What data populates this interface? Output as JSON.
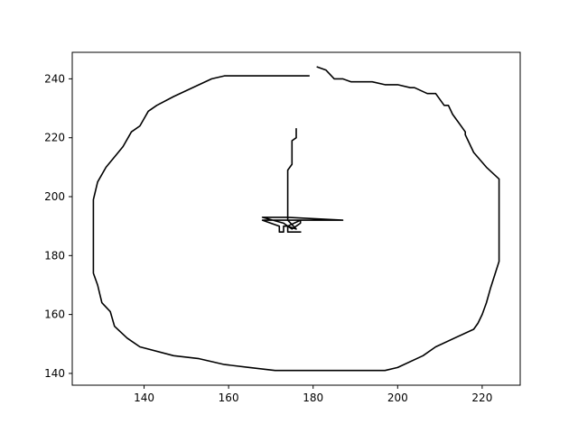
{
  "chart_data": {
    "type": "line",
    "title": "",
    "xlabel": "",
    "ylabel": "",
    "xlim": [
      123,
      229
    ],
    "ylim": [
      136,
      249
    ],
    "grid": false,
    "legend": null,
    "x_ticks": [
      140,
      160,
      180,
      200,
      220
    ],
    "y_ticks": [
      140,
      160,
      180,
      200,
      220,
      240
    ],
    "series": [
      {
        "color": "#000000",
        "x": [
          179,
          159,
          156,
          153,
          147,
          143,
          141,
          139,
          137,
          135,
          131,
          129,
          128,
          128,
          129,
          130,
          132,
          133,
          136,
          139,
          147,
          153,
          159,
          165,
          171,
          197,
          200,
          206,
          209,
          218,
          219,
          220,
          221,
          222,
          224,
          224,
          221,
          218,
          216,
          216,
          214,
          213,
          212,
          211,
          209,
          207,
          204,
          203,
          200,
          197,
          194,
          193,
          189,
          187,
          185,
          183,
          181
        ],
        "y": [
          241,
          241,
          240,
          238,
          234,
          231,
          229,
          224,
          222,
          217,
          210,
          205,
          199,
          174,
          170,
          164,
          161,
          156,
          152,
          149,
          146,
          145,
          143,
          142,
          141,
          141,
          142,
          146,
          149,
          155,
          157,
          160,
          164,
          169,
          178,
          206,
          210,
          215,
          221,
          222,
          226,
          228,
          231,
          231,
          235,
          235,
          237,
          237,
          238,
          238,
          239,
          239,
          239,
          240,
          240,
          243,
          244
        ]
      },
      {
        "color": "#000000",
        "x": [
          176,
          176,
          175,
          175,
          174,
          174,
          174,
          171,
          168,
          172,
          172,
          173,
          173,
          174,
          175,
          176,
          177,
          177,
          174,
          173,
          168,
          174,
          187,
          174,
          176,
          174,
          174,
          174,
          174,
          177
        ],
        "y": [
          223,
          220,
          219,
          211,
          209,
          193,
          192,
          192,
          192,
          190,
          188,
          188,
          190,
          190,
          189,
          190,
          191,
          192,
          190,
          191,
          193,
          193,
          192,
          192,
          189,
          190,
          188,
          188,
          188,
          188
        ]
      }
    ]
  }
}
